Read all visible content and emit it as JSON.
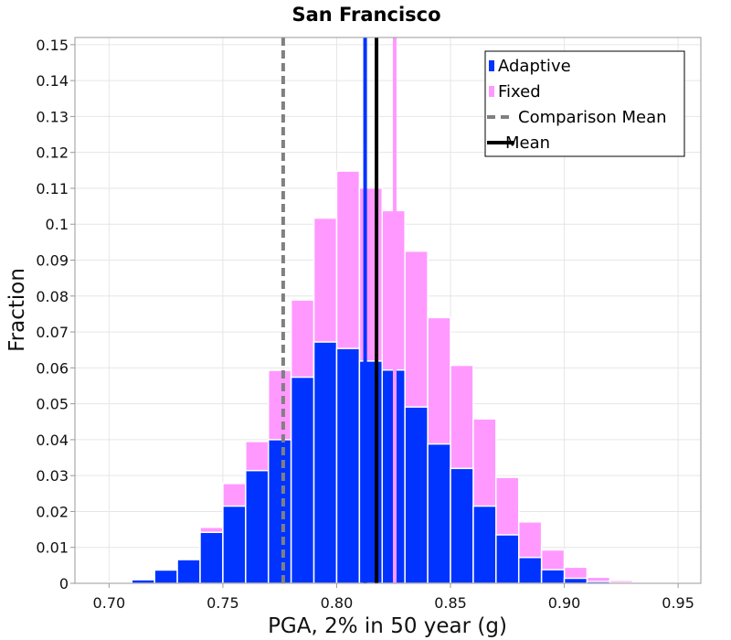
{
  "chart_data": {
    "type": "bar",
    "title": "San Francisco",
    "xlabel": "PGA, 2% in 50 year (g)",
    "ylabel": "Fraction",
    "xlim": [
      0.685,
      0.96
    ],
    "ylim": [
      0,
      0.152
    ],
    "bin_width": 0.01,
    "xticks": [
      0.7,
      0.75,
      0.8,
      0.85,
      0.9,
      0.95
    ],
    "xtick_labels": [
      "0.70",
      "0.75",
      "0.80",
      "0.85",
      "0.90",
      "0.95"
    ],
    "yticks": [
      0,
      0.01,
      0.02,
      0.03,
      0.04,
      0.05,
      0.06,
      0.07,
      0.08,
      0.09,
      0.1,
      0.11,
      0.12,
      0.13,
      0.14,
      0.15
    ],
    "ytick_labels": [
      "0",
      "0.01",
      "0.02",
      "0.03",
      "0.04",
      "0.05",
      "0.06",
      "0.07",
      "0.08",
      "0.09",
      "0.1",
      "0.11",
      "0.12",
      "0.13",
      "0.14",
      "0.15"
    ],
    "grid": true,
    "legend_position": "top-right",
    "bin_centers": [
      0.695,
      0.705,
      0.715,
      0.725,
      0.735,
      0.745,
      0.755,
      0.765,
      0.775,
      0.785,
      0.795,
      0.805,
      0.815,
      0.825,
      0.835,
      0.845,
      0.855,
      0.865,
      0.875,
      0.885,
      0.895,
      0.905,
      0.915,
      0.925,
      0.935,
      0.945
    ],
    "series": [
      {
        "name": "Fixed",
        "color": "#ff99ff",
        "values": [
          0.0001,
          0.0003,
          0.0011,
          0.0038,
          0.0069,
          0.0156,
          0.0278,
          0.0395,
          0.0593,
          0.0789,
          0.1017,
          0.1148,
          0.1101,
          0.1038,
          0.0925,
          0.074,
          0.0607,
          0.0458,
          0.0295,
          0.0171,
          0.0093,
          0.0045,
          0.0017,
          0.0008,
          0.0004,
          0.0002
        ]
      },
      {
        "name": "Adaptive",
        "color": "#0033ff",
        "values": [
          0.0001,
          0.0003,
          0.001,
          0.0037,
          0.0066,
          0.0142,
          0.0215,
          0.0314,
          0.04,
          0.0574,
          0.0672,
          0.0654,
          0.0619,
          0.0594,
          0.0491,
          0.0388,
          0.032,
          0.0215,
          0.0135,
          0.0072,
          0.0038,
          0.0014,
          0.0005,
          0.0002,
          0.0001,
          0.0
        ]
      }
    ],
    "lines": [
      {
        "name": "Comparison Mean",
        "x": 0.7765,
        "color": "#808080",
        "style": "dashed"
      },
      {
        "name": "Mean",
        "x": 0.8175,
        "color": "#000000",
        "style": "solid"
      },
      {
        "name": "Adaptive Mean",
        "x": 0.8125,
        "color": "#0033ff",
        "style": "solid"
      },
      {
        "name": "Fixed Mean",
        "x": 0.8255,
        "color": "#ff99ff",
        "style": "solid"
      }
    ],
    "legend": [
      {
        "label": "Adaptive",
        "kind": "patch",
        "color": "#0033ff"
      },
      {
        "label": "Fixed",
        "kind": "patch",
        "color": "#ff99ff"
      },
      {
        "label": "Comparison Mean",
        "kind": "dashed",
        "color": "#808080"
      },
      {
        "label": "Mean",
        "kind": "solid",
        "color": "#000000"
      }
    ]
  }
}
